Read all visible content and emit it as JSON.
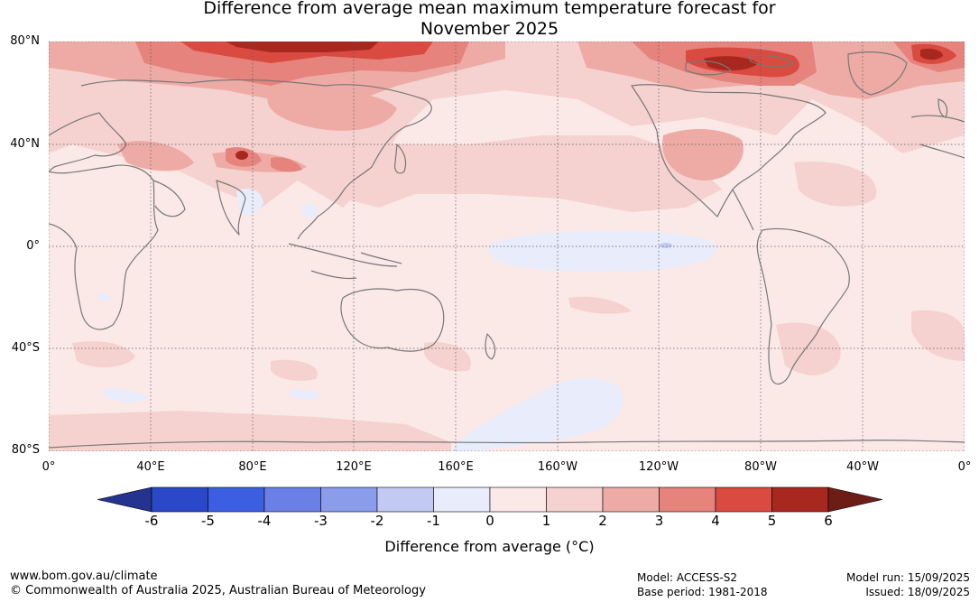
{
  "title": {
    "line1": "Difference from average mean maximum temperature forecast for",
    "line2": "November 2025"
  },
  "map": {
    "lat_labels": [
      "80°N",
      "40°N",
      "0°",
      "40°S",
      "80°S"
    ],
    "lon_labels": [
      "0°",
      "40°E",
      "80°E",
      "120°E",
      "160°E",
      "160°W",
      "120°W",
      "80°W",
      "40°W",
      "0°"
    ]
  },
  "colorbar": {
    "ticks": [
      "-6",
      "-5",
      "-4",
      "-3",
      "-2",
      "-1",
      "0",
      "1",
      "2",
      "3",
      "4",
      "5",
      "6"
    ],
    "colors": [
      "#24338f",
      "#2a48c8",
      "#3c5fe2",
      "#6a80e6",
      "#8b9cea",
      "#c2caf4",
      "#e8ecfb",
      "#fbe9e8",
      "#f5d2cf",
      "#eeaba6",
      "#e6837c",
      "#d94a40",
      "#a8271f",
      "#6e1c16"
    ],
    "label": "Difference from average (°C)"
  },
  "footer": {
    "url": "www.bom.gov.au/climate",
    "copyright": "© Commonwealth of Australia 2025, Australian Bureau of Meteorology",
    "model": "Model: ACCESS-S2",
    "base_period": "Base period: 1981-2018",
    "model_run": "Model run: 15/09/2025",
    "issued": "Issued: 18/09/2025"
  }
}
